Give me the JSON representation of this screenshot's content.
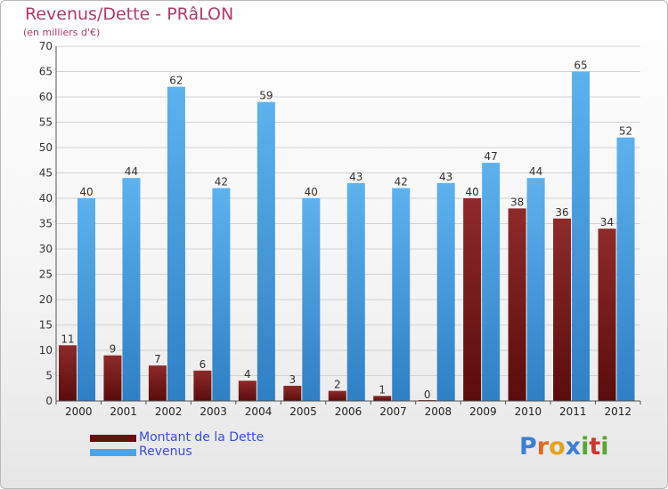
{
  "title": "Revenus/Dette - PRâLON",
  "subtitle": "(en milliers d'€)",
  "logo": {
    "text": "Proxiti",
    "letters": [
      "P",
      "r",
      "o",
      "x",
      "i",
      "t",
      "i"
    ],
    "colors": [
      "#3c7fd6",
      "#e06b1f",
      "#e2a21b",
      "#3c7fd6",
      "#57a832",
      "#d0352e",
      "#57a832"
    ]
  },
  "colors": {
    "dette": "#7a1a1a",
    "revenus": "#4da3e6"
  },
  "chart_data": {
    "type": "bar",
    "title": "Revenus/Dette - PRâLON",
    "ylabel": "(en milliers d'€)",
    "xlabel": "",
    "ylim": [
      0,
      70
    ],
    "yticks": [
      0,
      5,
      10,
      15,
      20,
      25,
      30,
      35,
      40,
      45,
      50,
      55,
      60,
      65,
      70
    ],
    "grid": true,
    "legend": "bottom-left",
    "categories": [
      "2000",
      "2001",
      "2002",
      "2003",
      "2004",
      "2005",
      "2006",
      "2007",
      "2008",
      "2009",
      "2010",
      "2011",
      "2012"
    ],
    "series": [
      {
        "name": "Montant de la Dette",
        "values": [
          11,
          9,
          7,
          6,
          4,
          3,
          2,
          1,
          0,
          40,
          38,
          36,
          34
        ]
      },
      {
        "name": "Revenus",
        "values": [
          40,
          44,
          62,
          42,
          59,
          40,
          43,
          42,
          43,
          47,
          44,
          65,
          52
        ]
      }
    ]
  }
}
